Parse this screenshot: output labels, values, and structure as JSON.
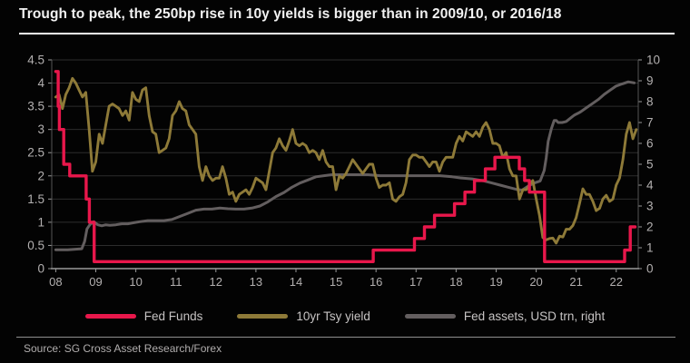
{
  "title": "Trough to peak, the 250bp rise in 10y yields is bigger than in 2009/10, or 2016/18",
  "source": "Source: SG Cross Asset Research/Forex",
  "colors": {
    "background": "#030303",
    "title_text": "#f2f2f2",
    "axis_text": "#b3b0b0",
    "gridline": "#2d2d2d",
    "axis_line": "#9a9a9a",
    "side_axis_line": "#565656",
    "fed_funds": "#e8174b",
    "tsy_10yr": "#8e7a38",
    "fed_assets": "#635e5f"
  },
  "chart_data": {
    "type": "line",
    "title": "Trough to peak, the 250bp rise in 10y yields is bigger than in 2009/10, or 2016/18",
    "grid": true,
    "legend_position": "bottom",
    "x_axis": {
      "range": [
        2007.9,
        2022.55
      ],
      "tick_years": [
        2008,
        2009,
        2010,
        2011,
        2012,
        2013,
        2014,
        2015,
        2016,
        2017,
        2018,
        2019,
        2020,
        2021,
        2022
      ],
      "tick_labels": [
        "08",
        "09",
        "10",
        "11",
        "12",
        "13",
        "14",
        "15",
        "16",
        "17",
        "18",
        "19",
        "20",
        "21",
        "22"
      ]
    },
    "left_axis": {
      "range": [
        0,
        4.5
      ],
      "ticks": [
        0,
        0.5,
        1,
        1.5,
        2,
        2.5,
        3,
        3.5,
        4,
        4.5
      ],
      "tick_labels": [
        "0",
        "0.5",
        "1",
        "1.5",
        "2",
        "2.5",
        "3",
        "3.5",
        "4",
        "4.5"
      ]
    },
    "right_axis": {
      "range": [
        0,
        10
      ],
      "ticks": [
        0,
        1,
        2,
        3,
        4,
        5,
        6,
        7,
        8,
        9,
        10
      ],
      "tick_labels": [
        "0",
        "1",
        "2",
        "3",
        "4",
        "5",
        "6",
        "7",
        "8",
        "9",
        "10"
      ]
    },
    "series": [
      {
        "key": "fed-assets",
        "name": "Fed assets, USD trn, right",
        "color": "#635e5f",
        "axis": "right",
        "style": "line",
        "points": [
          [
            2008.0,
            0.9
          ],
          [
            2008.3,
            0.9
          ],
          [
            2008.65,
            0.95
          ],
          [
            2008.72,
            1.3
          ],
          [
            2008.78,
            1.9
          ],
          [
            2008.85,
            2.1
          ],
          [
            2008.95,
            2.25
          ],
          [
            2009.05,
            2.1
          ],
          [
            2009.15,
            2.05
          ],
          [
            2009.25,
            2.1
          ],
          [
            2009.35,
            2.08
          ],
          [
            2009.5,
            2.1
          ],
          [
            2009.65,
            2.15
          ],
          [
            2009.8,
            2.15
          ],
          [
            2009.95,
            2.2
          ],
          [
            2010.1,
            2.25
          ],
          [
            2010.3,
            2.3
          ],
          [
            2010.5,
            2.3
          ],
          [
            2010.7,
            2.3
          ],
          [
            2010.9,
            2.35
          ],
          [
            2011.1,
            2.5
          ],
          [
            2011.3,
            2.65
          ],
          [
            2011.5,
            2.8
          ],
          [
            2011.7,
            2.85
          ],
          [
            2011.9,
            2.85
          ],
          [
            2012.1,
            2.9
          ],
          [
            2012.3,
            2.87
          ],
          [
            2012.5,
            2.85
          ],
          [
            2012.7,
            2.85
          ],
          [
            2012.9,
            2.9
          ],
          [
            2013.1,
            3.0
          ],
          [
            2013.3,
            3.2
          ],
          [
            2013.5,
            3.45
          ],
          [
            2013.7,
            3.65
          ],
          [
            2013.9,
            3.9
          ],
          [
            2014.1,
            4.1
          ],
          [
            2014.3,
            4.25
          ],
          [
            2014.5,
            4.4
          ],
          [
            2014.7,
            4.45
          ],
          [
            2014.9,
            4.5
          ],
          [
            2015.2,
            4.5
          ],
          [
            2015.5,
            4.5
          ],
          [
            2015.8,
            4.5
          ],
          [
            2016.1,
            4.45
          ],
          [
            2016.4,
            4.45
          ],
          [
            2016.7,
            4.45
          ],
          [
            2017.0,
            4.45
          ],
          [
            2017.3,
            4.45
          ],
          [
            2017.6,
            4.45
          ],
          [
            2017.9,
            4.4
          ],
          [
            2018.1,
            4.35
          ],
          [
            2018.4,
            4.3
          ],
          [
            2018.7,
            4.2
          ],
          [
            2018.9,
            4.1
          ],
          [
            2019.1,
            4.0
          ],
          [
            2019.3,
            3.9
          ],
          [
            2019.5,
            3.8
          ],
          [
            2019.65,
            3.76
          ],
          [
            2019.8,
            3.95
          ],
          [
            2019.95,
            4.1
          ],
          [
            2020.1,
            4.2
          ],
          [
            2020.2,
            4.7
          ],
          [
            2020.25,
            5.3
          ],
          [
            2020.3,
            6.1
          ],
          [
            2020.38,
            6.7
          ],
          [
            2020.45,
            7.1
          ],
          [
            2020.5,
            7.1
          ],
          [
            2020.55,
            7.0
          ],
          [
            2020.65,
            7.0
          ],
          [
            2020.75,
            7.05
          ],
          [
            2020.85,
            7.2
          ],
          [
            2020.95,
            7.35
          ],
          [
            2021.1,
            7.5
          ],
          [
            2021.25,
            7.7
          ],
          [
            2021.4,
            7.9
          ],
          [
            2021.55,
            8.1
          ],
          [
            2021.7,
            8.35
          ],
          [
            2021.85,
            8.55
          ],
          [
            2022.0,
            8.75
          ],
          [
            2022.15,
            8.85
          ],
          [
            2022.3,
            8.95
          ],
          [
            2022.45,
            8.9
          ]
        ]
      },
      {
        "key": "10yr-tsy-yield",
        "name": "10yr Tsy yield",
        "color": "#8e7a38",
        "axis": "left",
        "style": "line",
        "x_start": 2008.0,
        "x_step": 0.083333,
        "values": [
          3.7,
          3.75,
          3.45,
          3.75,
          3.9,
          4.1,
          4.0,
          3.85,
          3.7,
          3.8,
          3.0,
          2.1,
          2.3,
          2.9,
          2.7,
          3.1,
          3.5,
          3.55,
          3.5,
          3.45,
          3.3,
          3.4,
          3.2,
          3.8,
          3.65,
          3.6,
          3.85,
          3.9,
          3.3,
          2.95,
          2.9,
          2.5,
          2.55,
          2.6,
          2.8,
          3.3,
          3.4,
          3.6,
          3.45,
          3.4,
          3.1,
          3.0,
          2.9,
          2.2,
          1.9,
          2.2,
          2.0,
          1.9,
          1.95,
          1.95,
          2.2,
          1.95,
          1.6,
          1.65,
          1.45,
          1.6,
          1.65,
          1.7,
          1.6,
          1.75,
          1.95,
          1.9,
          1.85,
          1.7,
          2.1,
          2.5,
          2.6,
          2.8,
          2.65,
          2.55,
          2.75,
          3.0,
          2.7,
          2.65,
          2.7,
          2.65,
          2.5,
          2.55,
          2.5,
          2.35,
          2.55,
          2.3,
          2.2,
          2.2,
          1.7,
          2.0,
          1.95,
          2.05,
          2.2,
          2.35,
          2.25,
          2.15,
          2.05,
          2.15,
          2.25,
          2.25,
          1.95,
          1.75,
          1.8,
          1.8,
          1.85,
          1.5,
          1.45,
          1.55,
          1.6,
          1.85,
          2.35,
          2.45,
          2.45,
          2.4,
          2.4,
          2.3,
          2.2,
          2.3,
          2.3,
          2.1,
          2.3,
          2.4,
          2.4,
          2.4,
          2.7,
          2.85,
          2.75,
          2.95,
          2.9,
          2.85,
          2.95,
          2.85,
          3.05,
          3.15,
          3.0,
          2.7,
          2.7,
          2.65,
          2.4,
          2.5,
          2.15,
          2.0,
          2.0,
          1.5,
          1.7,
          1.7,
          1.8,
          1.9,
          1.5,
          1.15,
          0.67,
          0.62,
          0.65,
          0.66,
          0.55,
          0.7,
          0.68,
          0.85,
          0.85,
          0.93,
          1.1,
          1.4,
          1.72,
          1.6,
          1.6,
          1.45,
          1.25,
          1.3,
          1.5,
          1.58,
          1.45,
          1.5,
          1.8,
          1.95,
          2.35,
          2.9,
          3.15,
          2.8,
          3.0
        ]
      },
      {
        "key": "fed-funds",
        "name": "Fed Funds",
        "color": "#e8174b",
        "axis": "left",
        "style": "step",
        "points": [
          [
            2008.0,
            4.25
          ],
          [
            2008.06,
            3.5
          ],
          [
            2008.09,
            3.0
          ],
          [
            2008.2,
            2.25
          ],
          [
            2008.35,
            2.0
          ],
          [
            2008.76,
            1.5
          ],
          [
            2008.84,
            1.0
          ],
          [
            2008.96,
            0.15
          ],
          [
            2015.93,
            0.4
          ],
          [
            2016.96,
            0.65
          ],
          [
            2017.21,
            0.9
          ],
          [
            2017.46,
            1.15
          ],
          [
            2017.96,
            1.4
          ],
          [
            2018.22,
            1.65
          ],
          [
            2018.46,
            1.9
          ],
          [
            2018.73,
            2.15
          ],
          [
            2018.97,
            2.4
          ],
          [
            2019.58,
            2.15
          ],
          [
            2019.71,
            1.9
          ],
          [
            2019.83,
            1.65
          ],
          [
            2020.21,
            0.15
          ],
          [
            2022.21,
            0.4
          ],
          [
            2022.35,
            0.9
          ],
          [
            2022.47,
            0.9
          ]
        ]
      }
    ]
  }
}
